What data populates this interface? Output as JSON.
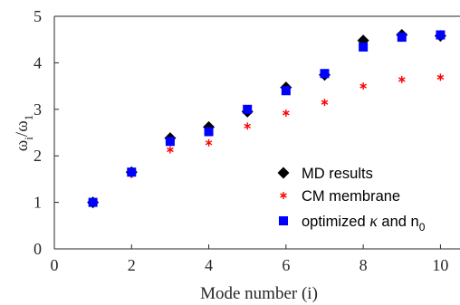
{
  "chart_data": {
    "type": "scatter",
    "xlabel": "Mode number (i)",
    "ylabel": {
      "main": "ω",
      "sub_i": "i",
      "slash": "/ω",
      "sub_1": "1"
    },
    "xlim": [
      0,
      10.6
    ],
    "ylim": [
      0,
      5
    ],
    "xticks": [
      "0",
      "2",
      "4",
      "6",
      "8",
      "10"
    ],
    "yticks": [
      "0",
      "1",
      "2",
      "3",
      "4",
      "5"
    ],
    "grid": false,
    "legend_position": "bottom-right",
    "series": [
      {
        "name": "MD results",
        "marker": "diamond",
        "color": "#000000",
        "x": [
          1,
          2,
          3,
          4,
          5,
          6,
          7,
          8,
          9,
          10
        ],
        "y": [
          1.0,
          1.65,
          2.38,
          2.62,
          2.95,
          3.47,
          3.74,
          4.48,
          4.6,
          4.58
        ]
      },
      {
        "name": "CM membrane",
        "marker": "asterisk",
        "color": "#ff0000",
        "x": [
          1,
          2,
          3,
          4,
          5,
          6,
          7,
          8,
          9,
          10
        ],
        "y": [
          1.0,
          1.6,
          2.13,
          2.28,
          2.64,
          2.92,
          3.15,
          3.5,
          3.64,
          3.69
        ]
      },
      {
        "name_parts": {
          "prefix": "optimized ",
          "kappa": "κ",
          "middle": " and n",
          "sub": "0"
        },
        "marker": "square",
        "color": "#0000ff",
        "x": [
          1,
          2,
          3,
          4,
          5,
          6,
          7,
          8,
          9,
          10
        ],
        "y": [
          1.0,
          1.65,
          2.31,
          2.52,
          3.0,
          3.4,
          3.77,
          4.34,
          4.55,
          4.6
        ]
      }
    ]
  }
}
